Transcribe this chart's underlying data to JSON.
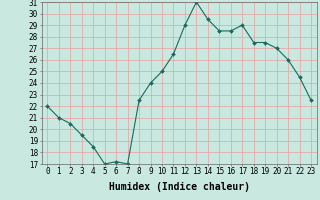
{
  "x": [
    0,
    1,
    2,
    3,
    4,
    5,
    6,
    7,
    8,
    9,
    10,
    11,
    12,
    13,
    14,
    15,
    16,
    17,
    18,
    19,
    20,
    21,
    22,
    23
  ],
  "y": [
    22.0,
    21.0,
    20.5,
    19.5,
    18.5,
    17.0,
    17.2,
    17.0,
    22.5,
    24.0,
    25.0,
    26.5,
    29.0,
    31.0,
    29.5,
    28.5,
    28.5,
    29.0,
    27.5,
    27.5,
    27.0,
    26.0,
    24.5,
    22.5
  ],
  "line_color": "#1a6b5e",
  "marker": "D",
  "marker_size": 2,
  "bg_color": "#c8e8e0",
  "grid_color": "#e8a0a0",
  "xlabel": "Humidex (Indice chaleur)",
  "xlim": [
    -0.5,
    23.5
  ],
  "ylim": [
    17,
    31
  ],
  "yticks": [
    17,
    18,
    19,
    20,
    21,
    22,
    23,
    24,
    25,
    26,
    27,
    28,
    29,
    30,
    31
  ],
  "xtick_labels": [
    "0",
    "1",
    "2",
    "3",
    "4",
    "5",
    "6",
    "7",
    "8",
    "9",
    "10",
    "11",
    "12",
    "13",
    "14",
    "15",
    "16",
    "17",
    "18",
    "19",
    "20",
    "21",
    "22",
    "23"
  ],
  "tick_fontsize": 5.5,
  "xlabel_fontsize": 7
}
